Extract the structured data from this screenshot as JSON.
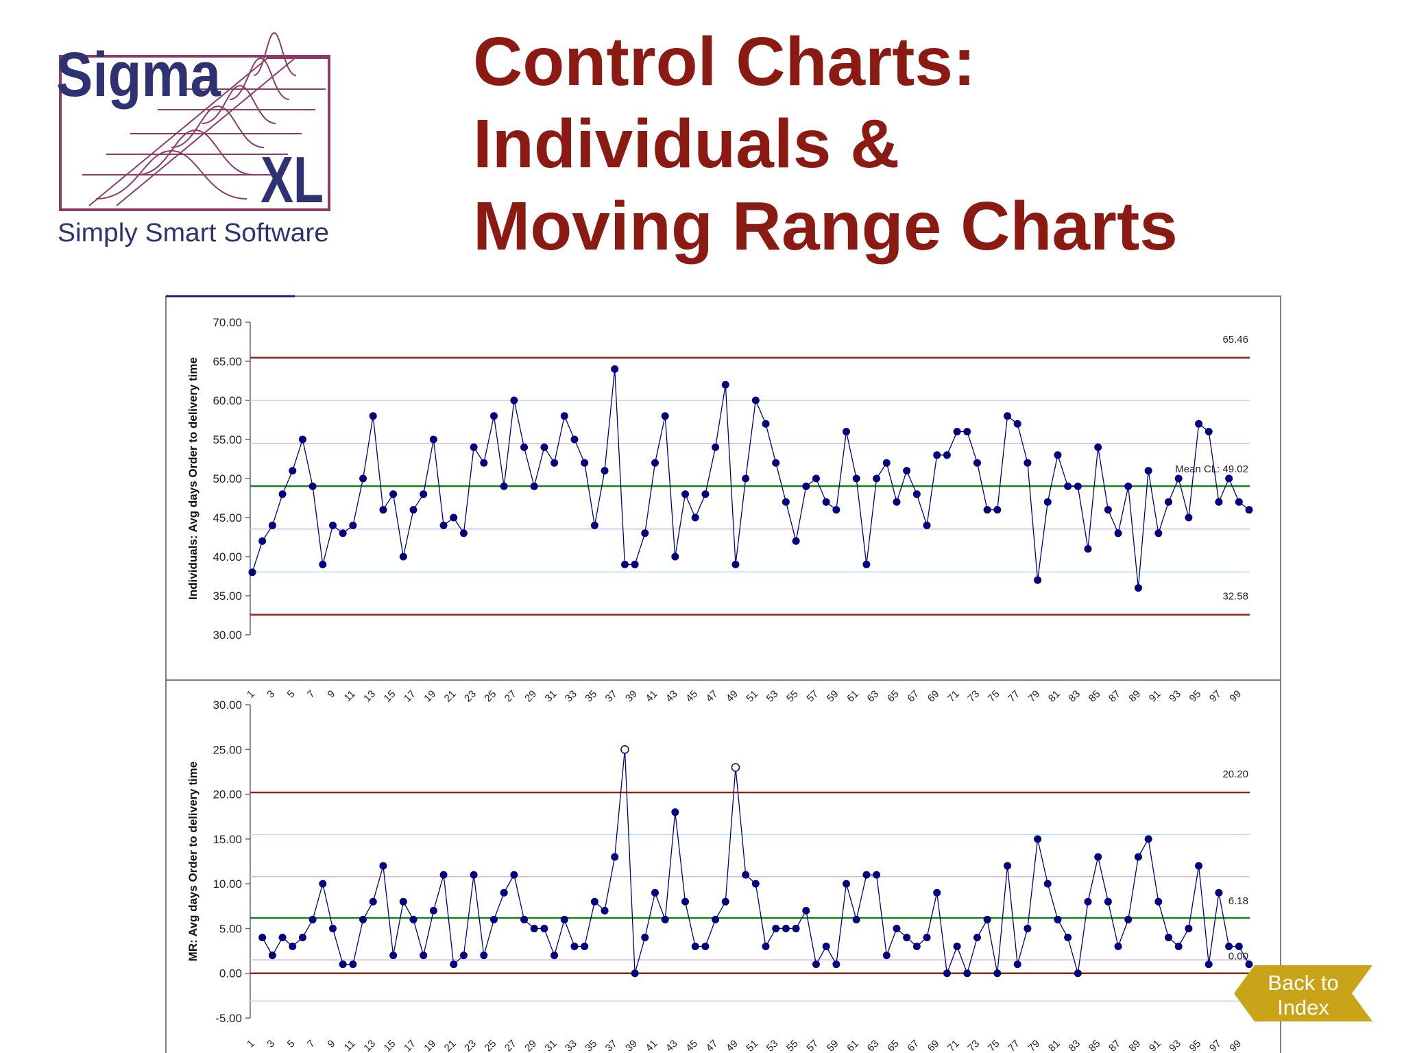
{
  "logo": {
    "brand_top": "Sigma",
    "brand_bottom": "XL",
    "tagline": "Simply Smart Software",
    "brand_color": "#2f3272",
    "frame_color": "#8a3b66"
  },
  "title": {
    "line1": "Control Charts:",
    "line2": "Individuals &",
    "line3": "Moving Range Charts",
    "color": "#8b1a12"
  },
  "nav": {
    "back_line1": "Back to",
    "back_line2": "Index",
    "button_color": "#c9a418"
  },
  "chart_data": [
    {
      "type": "line",
      "title": "",
      "ylabel": "Individuals: Avg days Order to delivery time",
      "xlabel": "",
      "ylim": [
        30,
        70
      ],
      "yticks": [
        "30.00",
        "35.00",
        "40.00",
        "45.00",
        "50.00",
        "55.00",
        "60.00",
        "65.00",
        "70.00"
      ],
      "x": [
        1,
        2,
        3,
        4,
        5,
        6,
        7,
        8,
        9,
        10,
        11,
        12,
        13,
        14,
        15,
        16,
        17,
        18,
        19,
        20,
        21,
        22,
        23,
        24,
        25,
        26,
        27,
        28,
        29,
        30,
        31,
        32,
        33,
        34,
        35,
        36,
        37,
        38,
        39,
        40,
        41,
        42,
        43,
        44,
        45,
        46,
        47,
        48,
        49,
        50,
        51,
        52,
        53,
        54,
        55,
        56,
        57,
        58,
        59,
        60,
        61,
        62,
        63,
        64,
        65,
        66,
        67,
        68,
        69,
        70,
        71,
        72,
        73,
        74,
        75,
        76,
        77,
        78,
        79,
        80,
        81,
        82,
        83,
        84,
        85,
        86,
        87,
        88,
        89,
        90,
        91,
        92,
        93,
        94,
        95,
        96,
        97,
        98,
        99,
        100
      ],
      "xtick_labels": [
        "1",
        "3",
        "5",
        "7",
        "9",
        "11",
        "13",
        "15",
        "17",
        "19",
        "21",
        "23",
        "25",
        "27",
        "29",
        "31",
        "33",
        "35",
        "37",
        "39",
        "41",
        "43",
        "45",
        "47",
        "49",
        "51",
        "53",
        "55",
        "57",
        "59",
        "61",
        "63",
        "65",
        "67",
        "69",
        "71",
        "73",
        "75",
        "77",
        "79",
        "81",
        "83",
        "85",
        "87",
        "89",
        "91",
        "93",
        "95",
        "97",
        "99"
      ],
      "series": [
        {
          "values": [
            38,
            42,
            44,
            48,
            51,
            55,
            49,
            39,
            44,
            43,
            44,
            50,
            58,
            46,
            48,
            40,
            46,
            48,
            55,
            44,
            45,
            43,
            54,
            52,
            58,
            49,
            60,
            54,
            49,
            54,
            52,
            58,
            55,
            52,
            44,
            51,
            64,
            39,
            39,
            43,
            52,
            58,
            40,
            48,
            45,
            48,
            54,
            62,
            39,
            50,
            60,
            57,
            52,
            47,
            42,
            49,
            50,
            47,
            46,
            56,
            50,
            39,
            50,
            52,
            47,
            51,
            48,
            44,
            53,
            53,
            56,
            56,
            52,
            46,
            46,
            58,
            57,
            52,
            37,
            47,
            53,
            49,
            49,
            41,
            54,
            46,
            43,
            49,
            36,
            51,
            43,
            47,
            50,
            45,
            57,
            56,
            47,
            50,
            47,
            46
          ],
          "color": "#00007f"
        }
      ],
      "ucl": 65.46,
      "cl": 49.02,
      "lcl": 32.58,
      "sigma_lines": [
        38.06,
        43.54,
        54.5,
        59.98
      ],
      "labels": {
        "ucl": "65.46",
        "cl": "Mean CL: 49.02",
        "lcl": "32.58"
      },
      "colors": {
        "limit": "#8b2a10",
        "center": "#1e7a1e",
        "one_sigma": "#d8b8e0",
        "two_sigma": "#b8dcf0",
        "point": "#00007f"
      }
    },
    {
      "type": "line",
      "title": "",
      "ylabel": "MR: Avg days Order to delivery time",
      "xlabel": "",
      "ylim": [
        -5,
        30
      ],
      "yticks": [
        "-5.00",
        "0.00",
        "5.00",
        "10.00",
        "15.00",
        "20.00",
        "25.00",
        "30.00"
      ],
      "x": [
        1,
        2,
        3,
        4,
        5,
        6,
        7,
        8,
        9,
        10,
        11,
        12,
        13,
        14,
        15,
        16,
        17,
        18,
        19,
        20,
        21,
        22,
        23,
        24,
        25,
        26,
        27,
        28,
        29,
        30,
        31,
        32,
        33,
        34,
        35,
        36,
        37,
        38,
        39,
        40,
        41,
        42,
        43,
        44,
        45,
        46,
        47,
        48,
        49,
        50,
        51,
        52,
        53,
        54,
        55,
        56,
        57,
        58,
        59,
        60,
        61,
        62,
        63,
        64,
        65,
        66,
        67,
        68,
        69,
        70,
        71,
        72,
        73,
        74,
        75,
        76,
        77,
        78,
        79,
        80,
        81,
        82,
        83,
        84,
        85,
        86,
        87,
        88,
        89,
        90,
        91,
        92,
        93,
        94,
        95,
        96,
        97,
        98,
        99,
        100
      ],
      "xtick_labels": [
        "1",
        "3",
        "5",
        "7",
        "9",
        "11",
        "13",
        "15",
        "17",
        "19",
        "21",
        "23",
        "25",
        "27",
        "29",
        "31",
        "33",
        "35",
        "37",
        "39",
        "41",
        "43",
        "45",
        "47",
        "49",
        "51",
        "53",
        "55",
        "57",
        "59",
        "61",
        "63",
        "65",
        "67",
        "69",
        "71",
        "73",
        "75",
        "77",
        "79",
        "81",
        "83",
        "85",
        "87",
        "89",
        "91",
        "93",
        "95",
        "97",
        "99"
      ],
      "series": [
        {
          "values": [
            null,
            4,
            2,
            4,
            3,
            4,
            6,
            10,
            5,
            1,
            1,
            6,
            8,
            12,
            2,
            8,
            6,
            2,
            7,
            11,
            1,
            2,
            11,
            2,
            6,
            9,
            11,
            6,
            5,
            5,
            2,
            6,
            3,
            3,
            8,
            7,
            13,
            25,
            0,
            4,
            9,
            6,
            18,
            8,
            3,
            3,
            6,
            8,
            23,
            11,
            10,
            3,
            5,
            5,
            5,
            7,
            1,
            3,
            1,
            10,
            6,
            11,
            11,
            2,
            5,
            4,
            3,
            4,
            9,
            0,
            3,
            0,
            4,
            6,
            0,
            12,
            1,
            5,
            15,
            10,
            6,
            4,
            0,
            8,
            13,
            8,
            3,
            6,
            13,
            15,
            8,
            4,
            3,
            5,
            12,
            1,
            9,
            3,
            3,
            1
          ],
          "color": "#00007f"
        }
      ],
      "out_of_control_points": [
        38,
        49
      ],
      "ucl": 20.2,
      "cl": 6.18,
      "lcl": 0.0,
      "sigma_lines": [
        -3.1,
        1.5,
        10.8,
        15.5
      ],
      "labels": {
        "ucl": "20.20",
        "cl": "6.18",
        "lcl": "0.00"
      },
      "colors": {
        "limit": "#8b2a10",
        "center": "#1e7a1e",
        "one_sigma": "#d8b8e0",
        "two_sigma": "#b8dcf0",
        "point": "#00007f"
      }
    }
  ]
}
